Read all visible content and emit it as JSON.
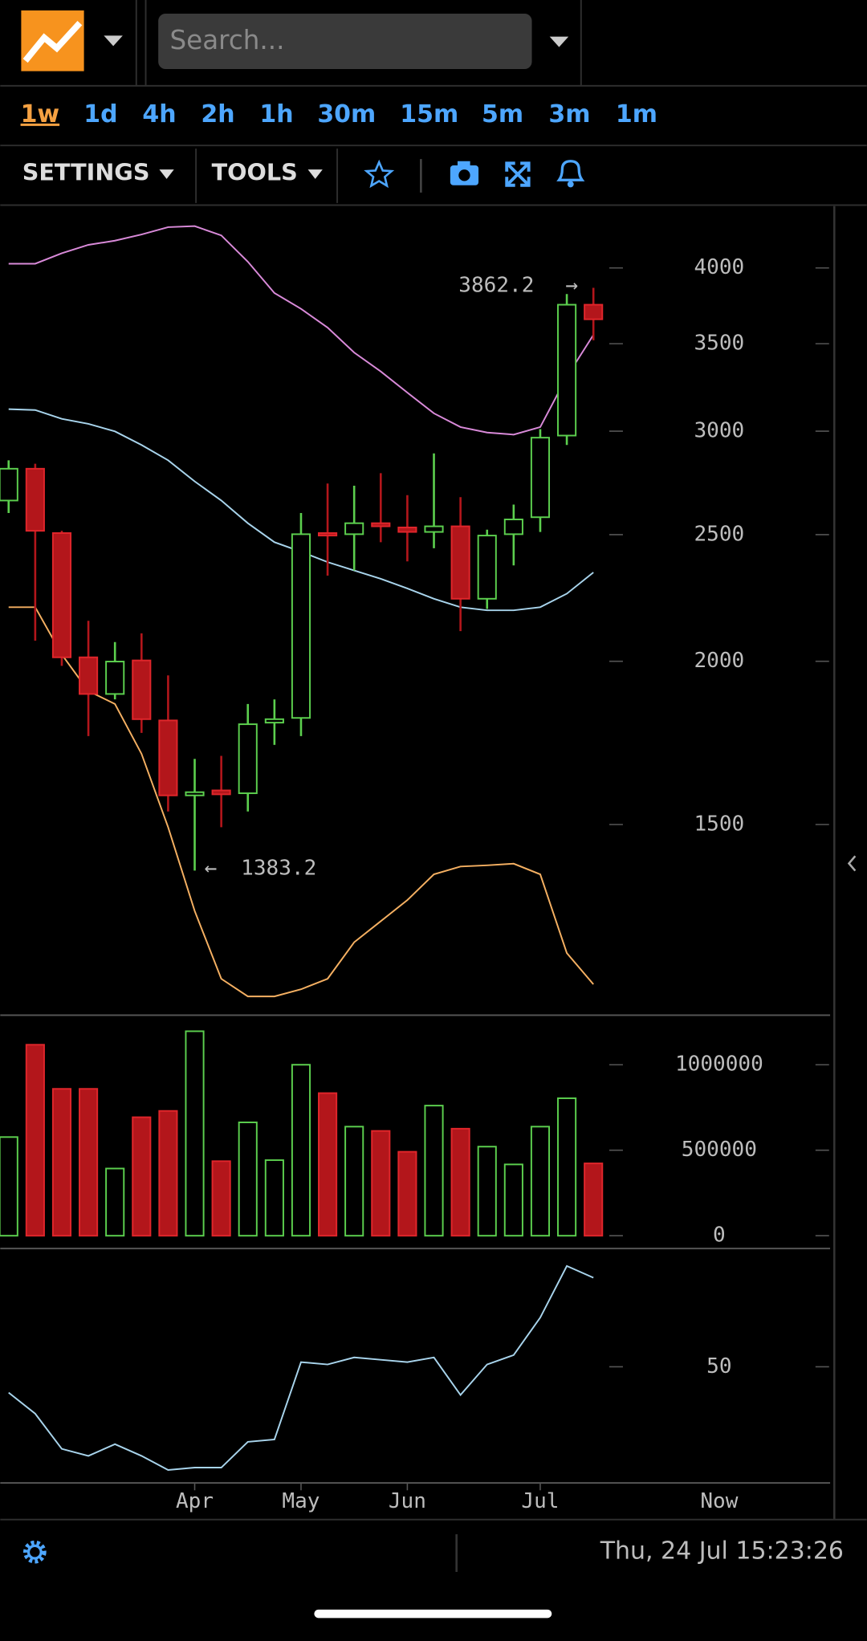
{
  "header": {
    "search_placeholder": "Search..."
  },
  "timeframes": [
    "1w",
    "1d",
    "4h",
    "2h",
    "1h",
    "30m",
    "15m",
    "5m",
    "3m",
    "1m"
  ],
  "menu": [
    "SETTINGS",
    "TOOLS"
  ],
  "chart_data": [
    {
      "type": "candlestick",
      "log_scale": true,
      "categories": [
        null,
        null,
        null,
        null,
        null,
        null,
        null,
        "Apr",
        null,
        null,
        null,
        "May",
        null,
        null,
        null,
        "Jun",
        null,
        null,
        null,
        null,
        "Jul",
        null,
        null
      ],
      "x_end_label": "Now",
      "open": [
        2655,
        2808,
        2507,
        2014,
        1888,
        2003,
        1802,
        1579,
        1593,
        1585,
        1795,
        1810,
        2507,
        2502,
        2551,
        2532,
        2512,
        2537,
        2233,
        2502,
        2578,
        2977,
        3749
      ],
      "high": [
        2850,
        2833,
        2517,
        2148,
        2069,
        2101,
        1951,
        1684,
        1693,
        1855,
        1870,
        2597,
        2736,
        2725,
        2786,
        2680,
        2885,
        2671,
        2522,
        2636,
        3011,
        3820,
        3862.2
      ],
      "low": [
        2597,
        2074,
        1984,
        1753,
        1870,
        1763,
        1535,
        1383.2,
        1493,
        1535,
        1726,
        1753,
        2326,
        2347,
        2467,
        2385,
        2441,
        2109,
        2193,
        2368,
        2512,
        2928,
        3521
      ],
      "close": [
        2808,
        2517,
        2014,
        1888,
        1999,
        1806,
        1579,
        1588,
        1582,
        1790,
        1806,
        2502,
        2496,
        2551,
        2537,
        2512,
        2537,
        2233,
        2496,
        2568,
        2966,
        3749,
        3654
      ],
      "up_color": "#5ccf4e",
      "down_color": "#b3161b",
      "lines": [
        {
          "color": "#d98ad9",
          "values": [
            4030,
            4030,
            4105,
            4166,
            4197,
            4243,
            4298,
            4306,
            4236,
            4044,
            3827,
            3722,
            3601,
            3446,
            3333,
            3211,
            3096,
            3022,
            2993,
            2982,
            3022,
            3302,
            3555
          ]
        },
        {
          "color": "#a8d4ec",
          "values": [
            3119,
            3114,
            3066,
            3039,
            2999,
            2928,
            2850,
            2746,
            2655,
            2551,
            2467,
            2426,
            2382,
            2347,
            2313,
            2274,
            2233,
            2200,
            2188,
            2188,
            2200,
            2253,
            2339
          ]
        },
        {
          "color": "#f5b062",
          "values": [
            2200,
            2200,
            2024,
            1898,
            1855,
            1699,
            1493,
            1288,
            1143,
            1108,
            1108,
            1122,
            1143,
            1219,
            1265,
            1313,
            1374,
            1393,
            1396,
            1400,
            1374,
            1196,
            1132
          ]
        }
      ],
      "ylim": [
        1072,
        4460
      ],
      "yticks": [
        1500,
        2000,
        2500,
        3000,
        3500,
        4000
      ]
    },
    {
      "type": "bar",
      "values": [
        577000,
        1117000,
        859000,
        859000,
        393000,
        693000,
        730000,
        1196000,
        436000,
        663000,
        442000,
        1000000,
        834000,
        638000,
        613000,
        491000,
        761000,
        626000,
        521000,
        417000,
        638000,
        804000,
        423000
      ],
      "ylim": [
        -75000,
        1290000
      ],
      "yticks": [
        0,
        500000,
        1000000
      ]
    },
    {
      "type": "line",
      "color": "#a8d4ec",
      "values": [
        39,
        30,
        15,
        12,
        17,
        12,
        6,
        7,
        7,
        18,
        19,
        52,
        51,
        54,
        53,
        52,
        54,
        38,
        51,
        55,
        71,
        93,
        88
      ],
      "ylim": [
        0,
        100
      ],
      "yticks": [
        50
      ]
    }
  ],
  "footer": {
    "datetime": "Thu, 24 Jul 15:23:26"
  }
}
